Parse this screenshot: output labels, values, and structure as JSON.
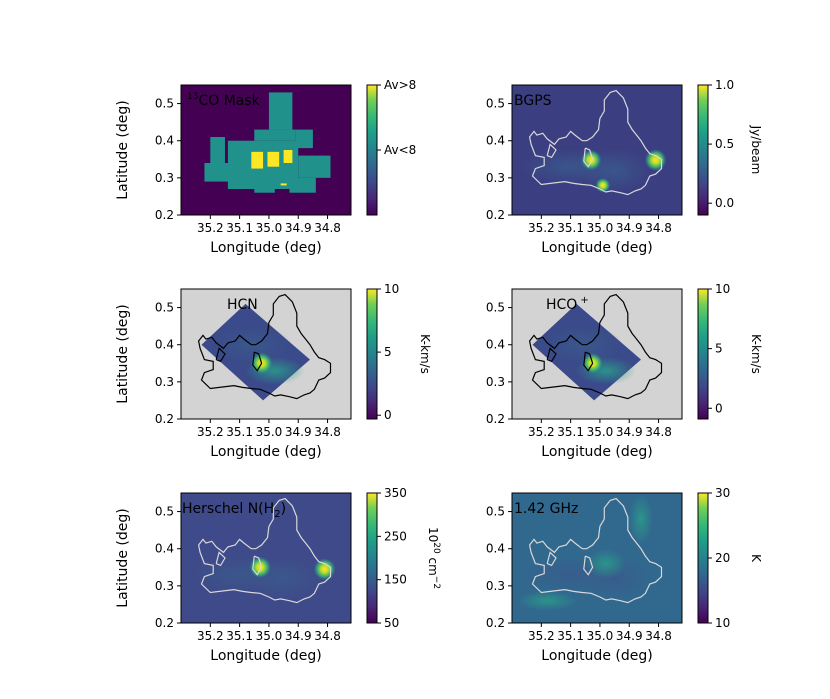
{
  "chart_data": [
    {
      "type": "heatmap",
      "panel_label": "13CO Mask",
      "panel_label_sup": "13",
      "panel_label_rest": "CO Mask",
      "xlabel": "Longitude (deg)",
      "ylabel": "Latitude (deg)",
      "xlim": [
        35.3,
        34.72
      ],
      "ylim": [
        0.2,
        0.55
      ],
      "xticks": [
        "35.2",
        "35.1",
        "35.0",
        "34.9",
        "34.8"
      ],
      "xtick_values": [
        35.2,
        35.1,
        35.0,
        34.9,
        34.8
      ],
      "yticks": [
        "0.2",
        "0.3",
        "0.4",
        "0.5"
      ],
      "ytick_values": [
        0.2,
        0.3,
        0.4,
        0.5
      ],
      "colorbar": {
        "label": "",
        "ticks": [
          "Av>8",
          "Av<8"
        ],
        "tick_values": [
          1,
          0.5
        ],
        "range": [
          0,
          1
        ]
      },
      "colormap": "viridis",
      "contour_color": "none",
      "background": "#440154",
      "grid": false
    },
    {
      "type": "heatmap",
      "panel_label": "BGPS",
      "xlabel": "Longitude (deg)",
      "ylabel": "",
      "xlim": [
        35.3,
        34.72
      ],
      "ylim": [
        0.2,
        0.55
      ],
      "xticks": [
        "35.2",
        "35.1",
        "35.0",
        "34.9",
        "34.8"
      ],
      "xtick_values": [
        35.2,
        35.1,
        35.0,
        34.9,
        34.8
      ],
      "yticks": [
        "0.2",
        "0.3",
        "0.4",
        "0.5"
      ],
      "ytick_values": [
        0.2,
        0.3,
        0.4,
        0.5
      ],
      "colorbar": {
        "label": "Jy/beam",
        "ticks": [
          "1.0",
          "0.5",
          "0.0"
        ],
        "tick_values": [
          1.0,
          0.5,
          0.0
        ],
        "range": [
          -0.1,
          1.0
        ]
      },
      "colormap": "viridis",
      "contour_color": "#d8d8d8",
      "background": "#3b3f82",
      "peaks": [
        {
          "l": 35.03,
          "b": 0.348,
          "v": 0.9
        },
        {
          "l": 34.81,
          "b": 0.348,
          "v": 1.0
        },
        {
          "l": 34.99,
          "b": 0.28,
          "v": 0.4
        }
      ],
      "grid": false
    },
    {
      "type": "heatmap",
      "panel_label": "HCN",
      "xlabel": "Longitude (deg)",
      "ylabel": "Latitude (deg)",
      "xlim": [
        35.3,
        34.72
      ],
      "ylim": [
        0.2,
        0.55
      ],
      "xticks": [
        "35.2",
        "35.1",
        "35.0",
        "34.9",
        "34.8"
      ],
      "xtick_values": [
        35.2,
        35.1,
        35.0,
        34.9,
        34.8
      ],
      "yticks": [
        "0.2",
        "0.3",
        "0.4",
        "0.5"
      ],
      "ytick_values": [
        0.2,
        0.3,
        0.4,
        0.5
      ],
      "colorbar": {
        "label": "K-km/s",
        "ticks": [
          "10",
          "5",
          "0"
        ],
        "tick_values": [
          10,
          5,
          0
        ],
        "range": [
          -0.3,
          10
        ]
      },
      "colormap": "viridis",
      "contour_color": "#000000",
      "background": "#d3d3d3",
      "peaks": [
        {
          "l": 35.025,
          "b": 0.35,
          "v": 10
        }
      ],
      "grid": false
    },
    {
      "type": "heatmap",
      "panel_label": "HCO+",
      "panel_label_base": "HCO",
      "panel_label_sup": "+",
      "xlabel": "Longitude (deg)",
      "ylabel": "",
      "xlim": [
        35.3,
        34.72
      ],
      "ylim": [
        0.2,
        0.55
      ],
      "xticks": [
        "35.2",
        "35.1",
        "35.0",
        "34.9",
        "34.8"
      ],
      "xtick_values": [
        35.2,
        35.1,
        35.0,
        34.9,
        34.8
      ],
      "yticks": [
        "0.2",
        "0.3",
        "0.4",
        "0.5"
      ],
      "ytick_values": [
        0.2,
        0.3,
        0.4,
        0.5
      ],
      "colorbar": {
        "label": "K-km/s",
        "ticks": [
          "10",
          "5",
          "0"
        ],
        "tick_values": [
          10,
          5,
          0
        ],
        "range": [
          -0.9,
          10
        ]
      },
      "colormap": "viridis",
      "contour_color": "#000000",
      "background": "#d3d3d3",
      "peaks": [
        {
          "l": 35.025,
          "b": 0.35,
          "v": 9
        }
      ],
      "grid": false
    },
    {
      "type": "heatmap",
      "panel_label": "Herschel N(H2)",
      "panel_label_base": "Herschel N(H",
      "panel_label_sub": "2",
      "panel_label_end": ")",
      "xlabel": "Longitude (deg)",
      "ylabel": "Latitude (deg)",
      "xlim": [
        35.3,
        34.72
      ],
      "ylim": [
        0.2,
        0.55
      ],
      "xticks": [
        "35.2",
        "35.1",
        "35.0",
        "34.9",
        "34.8"
      ],
      "xtick_values": [
        35.2,
        35.1,
        35.0,
        34.9,
        34.8
      ],
      "yticks": [
        "0.2",
        "0.3",
        "0.4",
        "0.5"
      ],
      "ytick_values": [
        0.2,
        0.3,
        0.4,
        0.5
      ],
      "colorbar": {
        "label": "10^20 cm^-2",
        "label_base": "10",
        "label_sup1": "20",
        "label_mid": " cm",
        "label_sup2": "−2",
        "ticks": [
          "350",
          "250",
          "150",
          "50"
        ],
        "tick_values": [
          350,
          250,
          150,
          50
        ],
        "range": [
          50,
          350
        ]
      },
      "colormap": "viridis",
      "contour_color": "#d8d8d8",
      "background": "#3e4a89",
      "peaks": [
        {
          "l": 35.03,
          "b": 0.35,
          "v": 340
        },
        {
          "l": 34.81,
          "b": 0.345,
          "v": 350
        }
      ],
      "grid": false
    },
    {
      "type": "heatmap",
      "panel_label": "1.42 GHz",
      "xlabel": "Longitude (deg)",
      "ylabel": "",
      "xlim": [
        35.3,
        34.72
      ],
      "ylim": [
        0.2,
        0.55
      ],
      "xticks": [
        "35.2",
        "35.1",
        "35.0",
        "34.9",
        "34.8"
      ],
      "xtick_values": [
        35.2,
        35.1,
        35.0,
        34.9,
        34.8
      ],
      "yticks": [
        "0.2",
        "0.3",
        "0.4",
        "0.5"
      ],
      "ytick_values": [
        0.2,
        0.3,
        0.4,
        0.5
      ],
      "colorbar": {
        "label": "K",
        "ticks": [
          "30",
          "20",
          "10"
        ],
        "tick_values": [
          30,
          20,
          10
        ],
        "range": [
          10,
          30
        ]
      },
      "colormap": "viridis",
      "contour_color": "#d8d8d8",
      "background": "#31688e",
      "grid": false
    }
  ],
  "colors": {
    "viridis_low": "#440154",
    "viridis_mid": "#21918c",
    "viridis_high": "#fde725",
    "missing": "#d3d3d3"
  }
}
